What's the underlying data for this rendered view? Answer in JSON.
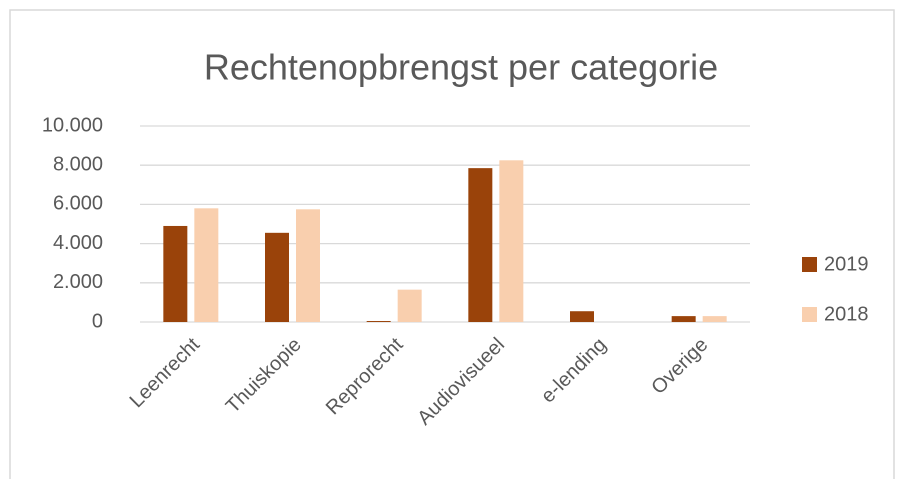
{
  "chart_data": {
    "type": "bar",
    "title": "Rechtenopbrengst per categorie",
    "categories": [
      "Leenrecht",
      "Thuiskopie",
      "Reprorecht",
      "Audiovisueel",
      "e-lending",
      "Overige"
    ],
    "series": [
      {
        "name": "2019",
        "color": "#9a430a",
        "values": [
          4900,
          4550,
          50,
          7850,
          550,
          300
        ]
      },
      {
        "name": "2018",
        "color": "#f9cfae",
        "values": [
          5800,
          5750,
          1650,
          8250,
          0,
          300
        ]
      }
    ],
    "ylim": [
      0,
      10000
    ],
    "yticks": [
      0,
      {
        "value": 2000,
        "label": "2.000"
      },
      {
        "value": 4000,
        "label": "4.000"
      },
      {
        "value": 6000,
        "label": "6.000"
      },
      {
        "value": 8000,
        "label": "8.000"
      },
      {
        "value": 10000,
        "label": "10.000"
      }
    ],
    "grid": true,
    "legend": "right"
  }
}
